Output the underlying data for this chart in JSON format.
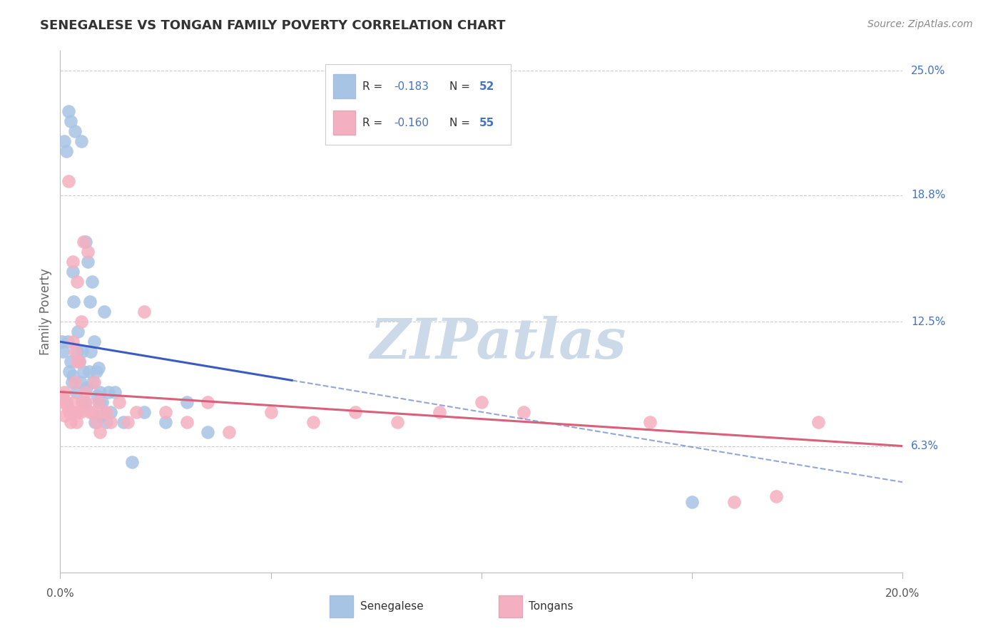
{
  "title": "SENEGALESE VS TONGAN FAMILY POVERTY CORRELATION CHART",
  "source": "Source: ZipAtlas.com",
  "ylabel": "Family Poverty",
  "xlim": [
    0.0,
    20.0
  ],
  "ylim": [
    0.0,
    26.0
  ],
  "ytick_values": [
    6.3,
    12.5,
    18.8,
    25.0
  ],
  "ytick_labels": [
    "6.3%",
    "12.5%",
    "18.8%",
    "25.0%"
  ],
  "xtick_values": [
    0.0,
    5.0,
    10.0,
    15.0,
    20.0
  ],
  "xtick_labels": [
    "0.0%",
    "",
    "",
    "",
    "20.0%"
  ],
  "legend_R_blue": "R = −0.183",
  "legend_N_blue": "N = 52",
  "legend_R_pink": "R = −0.160",
  "legend_N_pink": "N = 55",
  "blue_scatter_color": "#a8c4e5",
  "blue_line_color": "#3a5bbf",
  "pink_scatter_color": "#f4afc0",
  "pink_line_color": "#d9607a",
  "watermark_color": "#ccd9e8",
  "background_color": "#ffffff",
  "grid_color": "#cccccc",
  "title_color": "#333333",
  "right_label_color": "#4472c4",
  "source_color": "#888888",
  "blue_reg_x0": 0.0,
  "blue_reg_y0": 11.5,
  "blue_reg_x1": 20.0,
  "blue_reg_y1": 4.5,
  "blue_solid_x1": 5.5,
  "pink_reg_x0": 0.0,
  "pink_reg_y0": 9.0,
  "pink_reg_x1": 20.0,
  "pink_reg_y1": 6.3,
  "senegalese_x": [
    0.05,
    0.07,
    0.1,
    0.15,
    0.18,
    0.2,
    0.22,
    0.25,
    0.28,
    0.3,
    0.32,
    0.35,
    0.38,
    0.4,
    0.42,
    0.45,
    0.48,
    0.5,
    0.52,
    0.55,
    0.58,
    0.6,
    0.62,
    0.65,
    0.68,
    0.7,
    0.72,
    0.75,
    0.78,
    0.8,
    0.82,
    0.85,
    0.88,
    0.9,
    0.92,
    0.95,
    0.98,
    1.0,
    1.05,
    1.1,
    1.15,
    1.2,
    1.3,
    1.5,
    1.7,
    2.0,
    2.5,
    3.0,
    3.5,
    15.0,
    0.25,
    0.3
  ],
  "senegalese_y": [
    11.5,
    11.0,
    21.5,
    21.0,
    11.5,
    23.0,
    10.0,
    10.5,
    9.5,
    9.8,
    13.5,
    22.0,
    9.0,
    11.0,
    12.0,
    10.5,
    9.5,
    21.5,
    11.0,
    10.0,
    8.5,
    16.5,
    9.2,
    15.5,
    10.0,
    13.5,
    11.0,
    14.5,
    9.5,
    11.5,
    7.5,
    10.0,
    8.8,
    10.2,
    8.5,
    9.0,
    7.8,
    8.5,
    13.0,
    7.5,
    9.0,
    8.0,
    9.0,
    7.5,
    5.5,
    8.0,
    7.5,
    8.5,
    7.0,
    3.5,
    22.5,
    15.0
  ],
  "tongan_x": [
    0.05,
    0.08,
    0.1,
    0.12,
    0.15,
    0.18,
    0.2,
    0.22,
    0.25,
    0.28,
    0.3,
    0.32,
    0.35,
    0.38,
    0.4,
    0.42,
    0.45,
    0.48,
    0.5,
    0.52,
    0.55,
    0.58,
    0.6,
    0.65,
    0.7,
    0.75,
    0.8,
    0.85,
    0.9,
    0.95,
    1.0,
    1.1,
    1.2,
    1.4,
    1.6,
    1.8,
    2.0,
    2.5,
    3.0,
    3.5,
    4.0,
    5.0,
    6.0,
    7.0,
    8.0,
    9.0,
    10.0,
    11.0,
    14.0,
    16.0,
    17.0,
    18.0,
    0.3,
    0.35,
    0.4
  ],
  "tongan_y": [
    8.8,
    8.5,
    9.0,
    7.8,
    8.5,
    8.2,
    19.5,
    8.0,
    7.5,
    8.0,
    15.5,
    8.5,
    9.5,
    7.5,
    14.5,
    8.0,
    10.5,
    8.0,
    12.5,
    8.5,
    16.5,
    9.0,
    8.5,
    16.0,
    8.0,
    8.0,
    9.5,
    7.5,
    8.5,
    7.0,
    8.0,
    8.0,
    7.5,
    8.5,
    7.5,
    8.0,
    13.0,
    8.0,
    7.5,
    8.5,
    7.0,
    8.0,
    7.5,
    8.0,
    7.5,
    8.0,
    8.5,
    8.0,
    7.5,
    3.5,
    3.8,
    7.5,
    11.5,
    11.0,
    10.5
  ]
}
